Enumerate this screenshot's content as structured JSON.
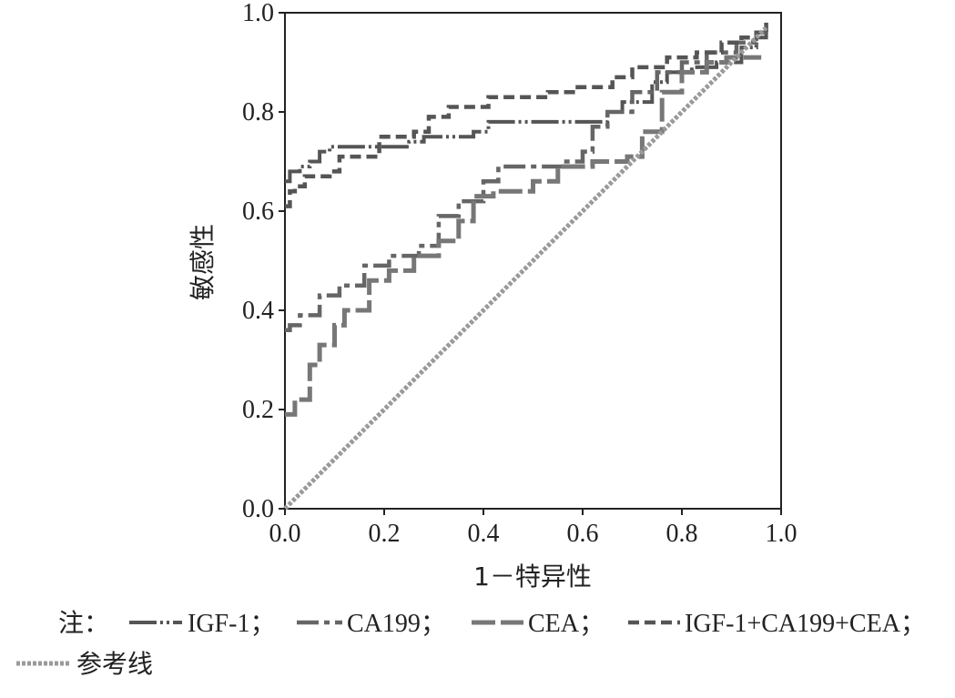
{
  "chart_data": {
    "type": "line",
    "title": "",
    "xlabel": "1－特异性",
    "ylabel": "敏感性",
    "xlim": [
      0,
      1
    ],
    "ylim": [
      0,
      1
    ],
    "xticks": [
      "0.0",
      "0.2",
      "0.4",
      "0.6",
      "0.8",
      "1.0"
    ],
    "yticks": [
      "0.0",
      "0.2",
      "0.4",
      "0.6",
      "0.8",
      "1.0"
    ],
    "grid": false,
    "legend_position": "bottom",
    "legend_prefix": "注：",
    "series": [
      {
        "name": "IGF-1；",
        "style": "dash-dot-dot",
        "color": "#555555",
        "points": [
          [
            0,
            0.66
          ],
          [
            0.01,
            0.66
          ],
          [
            0.01,
            0.68
          ],
          [
            0.03,
            0.68
          ],
          [
            0.03,
            0.69
          ],
          [
            0.05,
            0.69
          ],
          [
            0.05,
            0.7
          ],
          [
            0.07,
            0.7
          ],
          [
            0.07,
            0.72
          ],
          [
            0.09,
            0.72
          ],
          [
            0.09,
            0.73
          ],
          [
            0.25,
            0.73
          ],
          [
            0.25,
            0.74
          ],
          [
            0.28,
            0.74
          ],
          [
            0.28,
            0.75
          ],
          [
            0.38,
            0.75
          ],
          [
            0.38,
            0.76
          ],
          [
            0.41,
            0.76
          ],
          [
            0.41,
            0.78
          ],
          [
            0.65,
            0.78
          ],
          [
            0.65,
            0.8
          ],
          [
            0.68,
            0.8
          ],
          [
            0.68,
            0.82
          ],
          [
            0.74,
            0.82
          ],
          [
            0.74,
            0.86
          ],
          [
            0.77,
            0.86
          ],
          [
            0.77,
            0.88
          ],
          [
            0.82,
            0.88
          ],
          [
            0.82,
            0.89
          ],
          [
            0.87,
            0.89
          ],
          [
            0.87,
            0.9
          ],
          [
            0.92,
            0.9
          ],
          [
            0.92,
            0.93
          ],
          [
            0.95,
            0.93
          ],
          [
            0.95,
            0.95
          ],
          [
            0.97,
            0.95
          ],
          [
            0.97,
            0.97
          ]
        ]
      },
      {
        "name": "CA199；",
        "style": "long-dash-dot",
        "color": "#666666",
        "points": [
          [
            0,
            0.36
          ],
          [
            0.01,
            0.36
          ],
          [
            0.01,
            0.37
          ],
          [
            0.03,
            0.37
          ],
          [
            0.03,
            0.39
          ],
          [
            0.07,
            0.39
          ],
          [
            0.07,
            0.43
          ],
          [
            0.11,
            0.43
          ],
          [
            0.11,
            0.45
          ],
          [
            0.16,
            0.45
          ],
          [
            0.16,
            0.49
          ],
          [
            0.21,
            0.49
          ],
          [
            0.21,
            0.51
          ],
          [
            0.27,
            0.51
          ],
          [
            0.27,
            0.53
          ],
          [
            0.31,
            0.53
          ],
          [
            0.31,
            0.59
          ],
          [
            0.35,
            0.59
          ],
          [
            0.35,
            0.62
          ],
          [
            0.4,
            0.62
          ],
          [
            0.4,
            0.66
          ],
          [
            0.43,
            0.66
          ],
          [
            0.43,
            0.69
          ],
          [
            0.56,
            0.69
          ],
          [
            0.56,
            0.7
          ],
          [
            0.6,
            0.7
          ],
          [
            0.6,
            0.72
          ],
          [
            0.62,
            0.72
          ],
          [
            0.62,
            0.77
          ],
          [
            0.65,
            0.77
          ],
          [
            0.65,
            0.8
          ],
          [
            0.7,
            0.8
          ],
          [
            0.7,
            0.84
          ],
          [
            0.75,
            0.84
          ],
          [
            0.75,
            0.88
          ],
          [
            0.8,
            0.88
          ],
          [
            0.8,
            0.9
          ],
          [
            0.85,
            0.9
          ],
          [
            0.85,
            0.92
          ],
          [
            0.91,
            0.92
          ],
          [
            0.91,
            0.94
          ],
          [
            0.95,
            0.94
          ],
          [
            0.95,
            0.96
          ],
          [
            0.97,
            0.96
          ]
        ]
      },
      {
        "name": "CEA；",
        "style": "long-dash",
        "color": "#777777",
        "points": [
          [
            0,
            0.19
          ],
          [
            0.02,
            0.19
          ],
          [
            0.02,
            0.22
          ],
          [
            0.05,
            0.22
          ],
          [
            0.05,
            0.29
          ],
          [
            0.07,
            0.29
          ],
          [
            0.07,
            0.33
          ],
          [
            0.1,
            0.33
          ],
          [
            0.1,
            0.37
          ],
          [
            0.12,
            0.37
          ],
          [
            0.12,
            0.4
          ],
          [
            0.17,
            0.4
          ],
          [
            0.17,
            0.46
          ],
          [
            0.21,
            0.46
          ],
          [
            0.21,
            0.48
          ],
          [
            0.26,
            0.48
          ],
          [
            0.26,
            0.51
          ],
          [
            0.31,
            0.51
          ],
          [
            0.31,
            0.54
          ],
          [
            0.35,
            0.54
          ],
          [
            0.35,
            0.58
          ],
          [
            0.38,
            0.58
          ],
          [
            0.38,
            0.63
          ],
          [
            0.42,
            0.63
          ],
          [
            0.42,
            0.64
          ],
          [
            0.5,
            0.64
          ],
          [
            0.5,
            0.66
          ],
          [
            0.55,
            0.66
          ],
          [
            0.55,
            0.69
          ],
          [
            0.62,
            0.69
          ],
          [
            0.62,
            0.7
          ],
          [
            0.69,
            0.7
          ],
          [
            0.69,
            0.71
          ],
          [
            0.72,
            0.71
          ],
          [
            0.72,
            0.76
          ],
          [
            0.76,
            0.76
          ],
          [
            0.76,
            0.84
          ],
          [
            0.8,
            0.84
          ],
          [
            0.8,
            0.88
          ],
          [
            0.85,
            0.88
          ],
          [
            0.85,
            0.9
          ],
          [
            0.89,
            0.9
          ],
          [
            0.89,
            0.91
          ],
          [
            0.96,
            0.91
          ]
        ]
      },
      {
        "name": "IGF-1+CA199+CEA；",
        "style": "short-dash",
        "color": "#555555",
        "points": [
          [
            0,
            0.61
          ],
          [
            0.01,
            0.61
          ],
          [
            0.01,
            0.64
          ],
          [
            0.02,
            0.64
          ],
          [
            0.02,
            0.65
          ],
          [
            0.04,
            0.65
          ],
          [
            0.04,
            0.67
          ],
          [
            0.09,
            0.67
          ],
          [
            0.09,
            0.68
          ],
          [
            0.11,
            0.68
          ],
          [
            0.11,
            0.71
          ],
          [
            0.19,
            0.71
          ],
          [
            0.19,
            0.75
          ],
          [
            0.26,
            0.75
          ],
          [
            0.26,
            0.76
          ],
          [
            0.29,
            0.76
          ],
          [
            0.29,
            0.79
          ],
          [
            0.33,
            0.79
          ],
          [
            0.33,
            0.81
          ],
          [
            0.41,
            0.81
          ],
          [
            0.41,
            0.83
          ],
          [
            0.53,
            0.83
          ],
          [
            0.53,
            0.84
          ],
          [
            0.59,
            0.84
          ],
          [
            0.59,
            0.85
          ],
          [
            0.66,
            0.85
          ],
          [
            0.66,
            0.87
          ],
          [
            0.7,
            0.87
          ],
          [
            0.7,
            0.89
          ],
          [
            0.77,
            0.89
          ],
          [
            0.77,
            0.91
          ],
          [
            0.83,
            0.91
          ],
          [
            0.83,
            0.92
          ],
          [
            0.88,
            0.92
          ],
          [
            0.88,
            0.94
          ],
          [
            0.92,
            0.94
          ],
          [
            0.92,
            0.95
          ],
          [
            0.95,
            0.95
          ],
          [
            0.95,
            0.96
          ],
          [
            0.97,
            0.96
          ],
          [
            0.97,
            0.98
          ]
        ]
      },
      {
        "name": "参考线",
        "style": "dotted-bold",
        "color": "#9a9a9a",
        "points": [
          [
            0,
            0
          ],
          [
            0.97,
            0.97
          ]
        ]
      }
    ]
  }
}
